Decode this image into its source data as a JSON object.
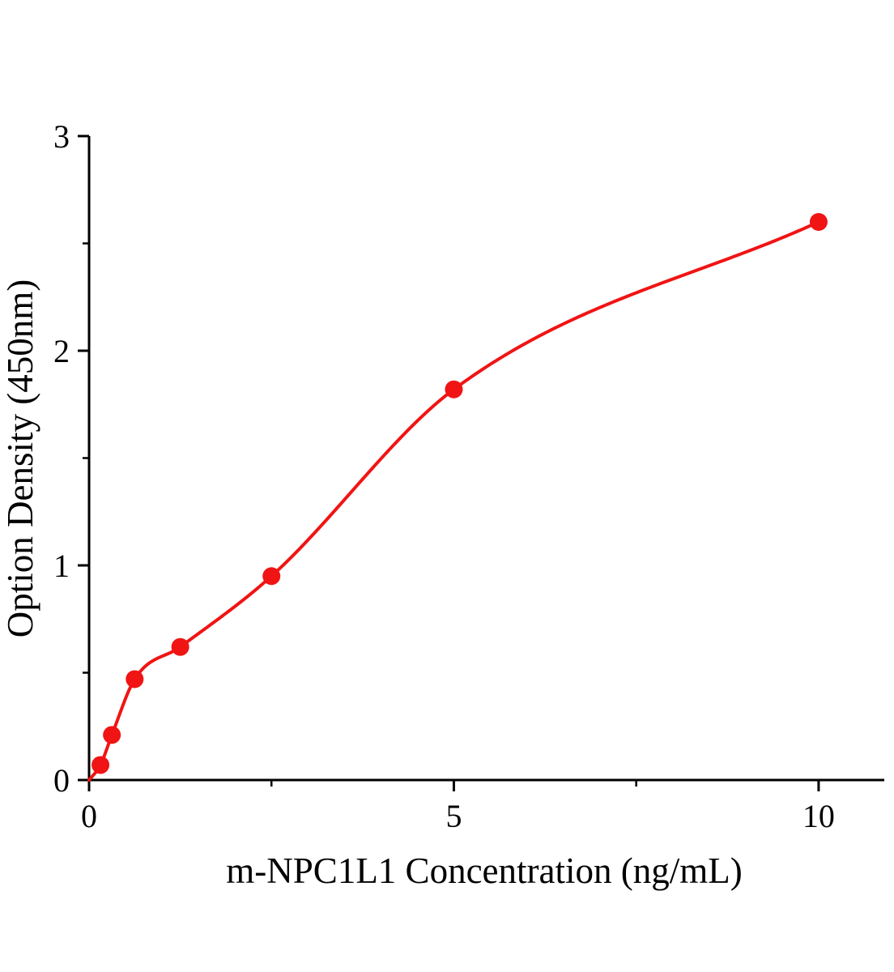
{
  "page": {
    "background_color": "#ffffff"
  },
  "chart_data": {
    "type": "scatter",
    "title": "",
    "xlabel": "m-NPC1L1 Concentration（ng/mL）",
    "ylabel": "Option Density（450nm）",
    "x": [
      0.156,
      0.3125,
      0.625,
      1.25,
      2.5,
      5,
      10
    ],
    "y": [
      0.07,
      0.21,
      0.47,
      0.62,
      0.95,
      1.82,
      2.6
    ],
    "curve_start": [
      0,
      0
    ],
    "fit": "smooth saturating standard-curve through the points",
    "xlim": [
      0,
      10.9
    ],
    "ylim": [
      0,
      3
    ],
    "x_major_ticks": [
      0,
      5,
      10
    ],
    "x_minor_ticks": [
      2.5,
      7.5
    ],
    "y_major_ticks": [
      0,
      1,
      2,
      3
    ],
    "y_minor_ticks": [
      0.5,
      1.5,
      2.5
    ],
    "grid": false,
    "legend": null,
    "point_color": "#f01414",
    "line_color": "#f01414",
    "axis_color": "#000000"
  }
}
